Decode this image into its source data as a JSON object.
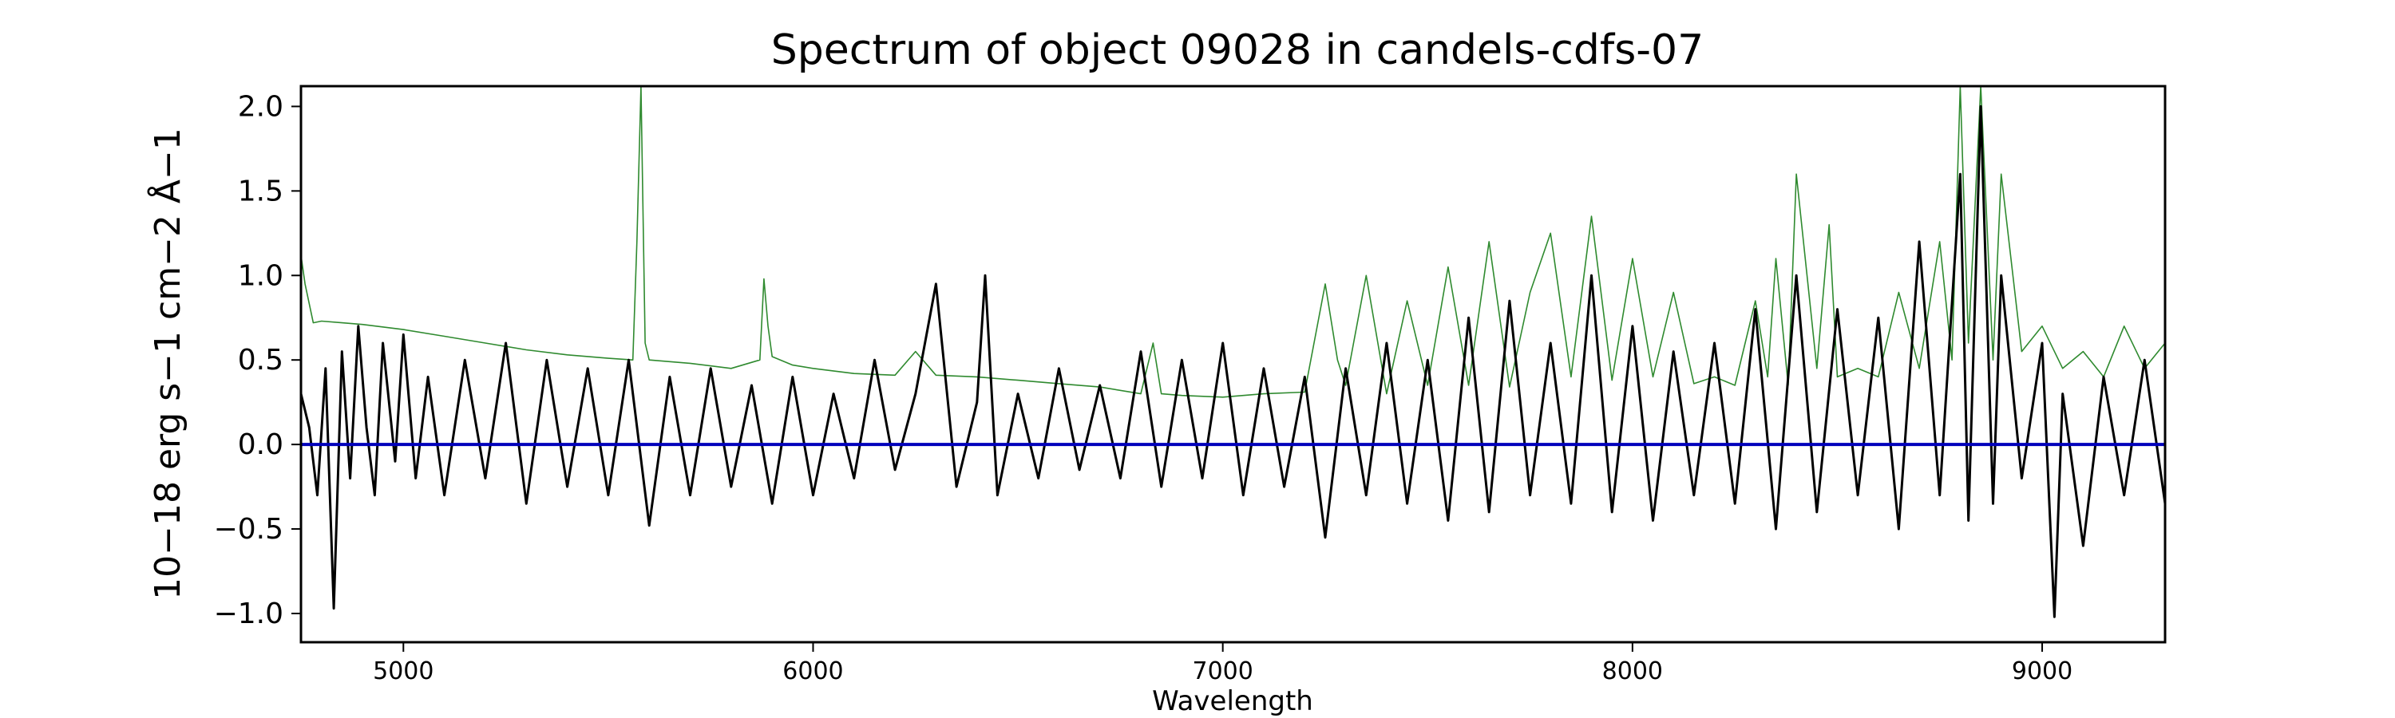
{
  "chart_data": {
    "type": "line",
    "title": "Spectrum of object 09028 in candels-cdfs-07",
    "xlabel": "Wavelength",
    "ylabel": "10−18 erg s−1 cm−2 Å−1",
    "xlim": [
      4750,
      9300
    ],
    "ylim": [
      -1.17,
      2.12
    ],
    "xticks": [
      {
        "value": 5000,
        "label": "5000"
      },
      {
        "value": 6000,
        "label": "6000"
      },
      {
        "value": 7000,
        "label": "7000"
      },
      {
        "value": 8000,
        "label": "8000"
      },
      {
        "value": 9000,
        "label": "9000"
      }
    ],
    "yticks": [
      {
        "value": 2.0,
        "label": "2.0"
      },
      {
        "value": 1.5,
        "label": "1.5"
      },
      {
        "value": 1.0,
        "label": "1.0"
      },
      {
        "value": 0.5,
        "label": "0.5"
      },
      {
        "value": 0.0,
        "label": "0.0"
      },
      {
        "value": -0.5,
        "label": "−0.5"
      },
      {
        "value": -1.0,
        "label": "−1.0"
      }
    ],
    "grid": false,
    "legend": "none",
    "series": [
      {
        "color": "#2f8a2f",
        "role": "error",
        "values_x": [
          4750,
          4760,
          4780,
          4800,
          4850,
          4900,
          5000,
          5100,
          5200,
          5300,
          5400,
          5500,
          5560,
          5570,
          5580,
          5590,
          5600,
          5700,
          5800,
          5870,
          5880,
          5890,
          5900,
          5950,
          6000,
          6100,
          6200,
          6250,
          6300,
          6400,
          6500,
          6600,
          6700,
          6800,
          6830,
          6850,
          6900,
          7000,
          7100,
          7200,
          7250,
          7280,
          7300,
          7350,
          7400,
          7450,
          7500,
          7550,
          7600,
          7650,
          7700,
          7750,
          7800,
          7850,
          7900,
          7950,
          8000,
          8050,
          8100,
          8150,
          8200,
          8250,
          8300,
          8330,
          8350,
          8380,
          8400,
          8450,
          8480,
          8500,
          8550,
          8600,
          8650,
          8700,
          8750,
          8780,
          8800,
          8820,
          8850,
          8880,
          8900,
          8950,
          9000,
          9050,
          9100,
          9150,
          9200,
          9250,
          9300
        ],
        "values_y": [
          1.12,
          0.95,
          0.72,
          0.73,
          0.72,
          0.71,
          0.68,
          0.64,
          0.6,
          0.56,
          0.53,
          0.51,
          0.5,
          1.2,
          2.12,
          0.6,
          0.5,
          0.48,
          0.45,
          0.5,
          0.98,
          0.7,
          0.52,
          0.47,
          0.45,
          0.42,
          0.41,
          0.55,
          0.41,
          0.4,
          0.38,
          0.36,
          0.34,
          0.3,
          0.6,
          0.3,
          0.29,
          0.28,
          0.3,
          0.31,
          0.95,
          0.5,
          0.35,
          1.0,
          0.3,
          0.85,
          0.35,
          1.05,
          0.35,
          1.2,
          0.34,
          0.9,
          1.25,
          0.4,
          1.35,
          0.38,
          1.1,
          0.4,
          0.9,
          0.36,
          0.4,
          0.35,
          0.85,
          0.4,
          1.1,
          0.35,
          1.6,
          0.45,
          1.3,
          0.4,
          0.45,
          0.4,
          0.9,
          0.45,
          1.2,
          0.5,
          2.12,
          0.6,
          2.12,
          0.5,
          1.6,
          0.55,
          0.7,
          0.45,
          0.55,
          0.4,
          0.7,
          0.45,
          0.6
        ]
      },
      {
        "color": "#000000",
        "role": "flux",
        "values_x": [
          4750,
          4770,
          4790,
          4810,
          4830,
          4850,
          4870,
          4890,
          4910,
          4930,
          4950,
          4980,
          5000,
          5030,
          5060,
          5100,
          5150,
          5200,
          5250,
          5300,
          5350,
          5400,
          5450,
          5500,
          5550,
          5600,
          5650,
          5700,
          5750,
          5800,
          5850,
          5900,
          5950,
          6000,
          6050,
          6100,
          6150,
          6200,
          6250,
          6300,
          6350,
          6400,
          6420,
          6450,
          6500,
          6550,
          6600,
          6650,
          6700,
          6750,
          6800,
          6850,
          6900,
          6950,
          7000,
          7050,
          7100,
          7150,
          7200,
          7250,
          7300,
          7350,
          7400,
          7450,
          7500,
          7550,
          7600,
          7650,
          7700,
          7750,
          7800,
          7850,
          7900,
          7950,
          8000,
          8050,
          8100,
          8150,
          8200,
          8250,
          8300,
          8350,
          8400,
          8450,
          8500,
          8550,
          8600,
          8650,
          8700,
          8750,
          8800,
          8820,
          8850,
          8880,
          8900,
          8950,
          9000,
          9030,
          9050,
          9100,
          9150,
          9200,
          9250,
          9300
        ],
        "values_y": [
          0.3,
          0.1,
          -0.3,
          0.45,
          -0.97,
          0.55,
          -0.2,
          0.7,
          0.1,
          -0.3,
          0.6,
          -0.1,
          0.65,
          -0.2,
          0.4,
          -0.3,
          0.5,
          -0.2,
          0.6,
          -0.35,
          0.5,
          -0.25,
          0.45,
          -0.3,
          0.5,
          -0.48,
          0.4,
          -0.3,
          0.45,
          -0.25,
          0.35,
          -0.35,
          0.4,
          -0.3,
          0.3,
          -0.2,
          0.5,
          -0.15,
          0.3,
          0.95,
          -0.25,
          0.25,
          1.0,
          -0.3,
          0.3,
          -0.2,
          0.45,
          -0.15,
          0.35,
          -0.2,
          0.55,
          -0.25,
          0.5,
          -0.2,
          0.6,
          -0.3,
          0.45,
          -0.25,
          0.4,
          -0.55,
          0.45,
          -0.3,
          0.6,
          -0.35,
          0.5,
          -0.45,
          0.75,
          -0.4,
          0.85,
          -0.3,
          0.6,
          -0.35,
          1.0,
          -0.4,
          0.7,
          -0.45,
          0.55,
          -0.3,
          0.6,
          -0.35,
          0.8,
          -0.5,
          1.0,
          -0.4,
          0.8,
          -0.3,
          0.75,
          -0.5,
          1.2,
          -0.3,
          1.6,
          -0.45,
          2.0,
          -0.35,
          1.0,
          -0.2,
          0.6,
          -1.02,
          0.3,
          -0.6,
          0.4,
          -0.3,
          0.5,
          -0.35
        ]
      },
      {
        "color": "#0000bb",
        "role": "continuum",
        "values_x": [
          4750,
          9300
        ],
        "values_y": [
          0.0,
          0.0
        ]
      }
    ]
  }
}
